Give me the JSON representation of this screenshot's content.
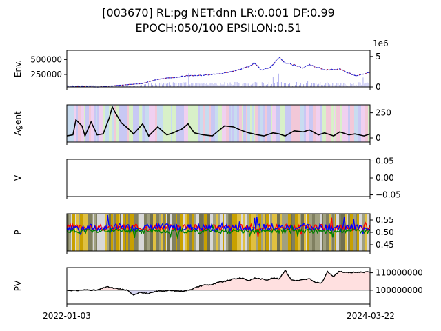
{
  "title_line1": "[003670] RL:pg NET:dnn LR:0.001 DF:0.99",
  "title_line2": "EPOCH:050/100 EPSILON:0.51",
  "x_start_label": "2022-01-03",
  "x_end_label": "2024-03-22",
  "chart_data": [
    {
      "type": "line",
      "ylabel": "Env.",
      "left_ticks": [
        "500000",
        "250000"
      ],
      "left_tick_values": [
        500000,
        250000
      ],
      "right_ticks": [
        "5",
        "0"
      ],
      "right_tick_values": [
        5000000,
        0
      ],
      "right_offset_label": "1e6",
      "series": [
        {
          "kind": "price",
          "x": [
            0,
            0.05,
            0.1,
            0.15,
            0.2,
            0.25,
            0.3,
            0.35,
            0.4,
            0.45,
            0.5,
            0.55,
            0.6,
            0.62,
            0.64,
            0.66,
            0.68,
            0.7,
            0.72,
            0.74,
            0.76,
            0.78,
            0.8,
            0.85,
            0.9,
            0.95,
            1.0
          ],
          "values": [
            60000,
            50000,
            40000,
            60000,
            80000,
            100000,
            170000,
            200000,
            230000,
            240000,
            260000,
            300000,
            380000,
            450000,
            320000,
            350000,
            400000,
            550000,
            450000,
            420000,
            400000,
            360000,
            410000,
            330000,
            340000,
            230000,
            280000
          ]
        }
      ],
      "bars_note": "volume"
    },
    {
      "type": "line",
      "ylabel": "Agent",
      "right_ticks": [
        "250",
        "0"
      ],
      "right_tick_values": [
        250,
        0
      ],
      "series": [
        {
          "kind": "holdings",
          "x": [
            0,
            0.02,
            0.03,
            0.05,
            0.06,
            0.08,
            0.1,
            0.12,
            0.14,
            0.15,
            0.16,
            0.18,
            0.2,
            0.22,
            0.25,
            0.27,
            0.3,
            0.33,
            0.35,
            0.38,
            0.4,
            0.42,
            0.45,
            0.48,
            0.5,
            0.52,
            0.55,
            0.58,
            0.6,
            0.63,
            0.65,
            0.68,
            0.7,
            0.72,
            0.75,
            0.78,
            0.8,
            0.83,
            0.85,
            0.88,
            0.9,
            0.93,
            0.95,
            0.98,
            1.0
          ],
          "values": [
            20,
            30,
            180,
            120,
            20,
            160,
            30,
            40,
            200,
            310,
            250,
            150,
            100,
            40,
            140,
            20,
            110,
            30,
            50,
            90,
            140,
            50,
            30,
            20,
            70,
            120,
            110,
            70,
            50,
            30,
            20,
            50,
            40,
            20,
            70,
            60,
            80,
            30,
            50,
            20,
            60,
            30,
            40,
            20,
            40
          ]
        }
      ],
      "bands_note": "action"
    },
    {
      "type": "line",
      "ylabel": "V",
      "right_ticks": [
        "0.05",
        "0.00",
        "−0.05"
      ],
      "right_tick_values": [
        0.05,
        0,
        -0.05
      ],
      "series": []
    },
    {
      "type": "line",
      "ylabel": "P",
      "right_ticks": [
        "0.55",
        "0.50",
        "0.45"
      ],
      "right_tick_values": [
        0.55,
        0.5,
        0.45
      ],
      "series": [
        {
          "kind": "p-red",
          "color": "#ff0000",
          "base": 0.52,
          "amp": 0.025,
          "seed": 3
        },
        {
          "kind": "p-blue",
          "color": "#0000ff",
          "base": 0.52,
          "amp": 0.03,
          "seed": 7
        },
        {
          "kind": "p-green",
          "color": "#008000",
          "base": 0.505,
          "amp": 0.018,
          "seed": 11
        }
      ]
    },
    {
      "type": "area",
      "ylabel": "PV",
      "right_ticks": [
        "110000000",
        "100000000"
      ],
      "right_tick_values": [
        110000000,
        100000000
      ],
      "baseline": 100000000,
      "series": [
        {
          "kind": "pv",
          "x": [
            0,
            0.03,
            0.06,
            0.1,
            0.13,
            0.16,
            0.2,
            0.22,
            0.24,
            0.27,
            0.3,
            0.34,
            0.38,
            0.4,
            0.45,
            0.48,
            0.5,
            0.52,
            0.55,
            0.58,
            0.6,
            0.62,
            0.64,
            0.66,
            0.68,
            0.7,
            0.72,
            0.74,
            0.76,
            0.78,
            0.8,
            0.82,
            0.84,
            0.86,
            0.88,
            0.9,
            0.92,
            0.95,
            1.0
          ],
          "values": [
            100000000,
            99800000,
            100200000,
            100000000,
            102000000,
            101000000,
            100000000,
            97000000,
            99000000,
            98000000,
            99500000,
            99800000,
            99500000,
            100000000,
            103000000,
            103200000,
            104500000,
            105000000,
            106500000,
            107000000,
            105500000,
            107000000,
            106500000,
            106000000,
            107000000,
            106500000,
            111500000,
            106000000,
            105500000,
            106000000,
            106500000,
            104500000,
            104000000,
            110500000,
            108000000,
            111000000,
            110000000,
            110200000,
            110500000
          ]
        }
      ]
    }
  ]
}
